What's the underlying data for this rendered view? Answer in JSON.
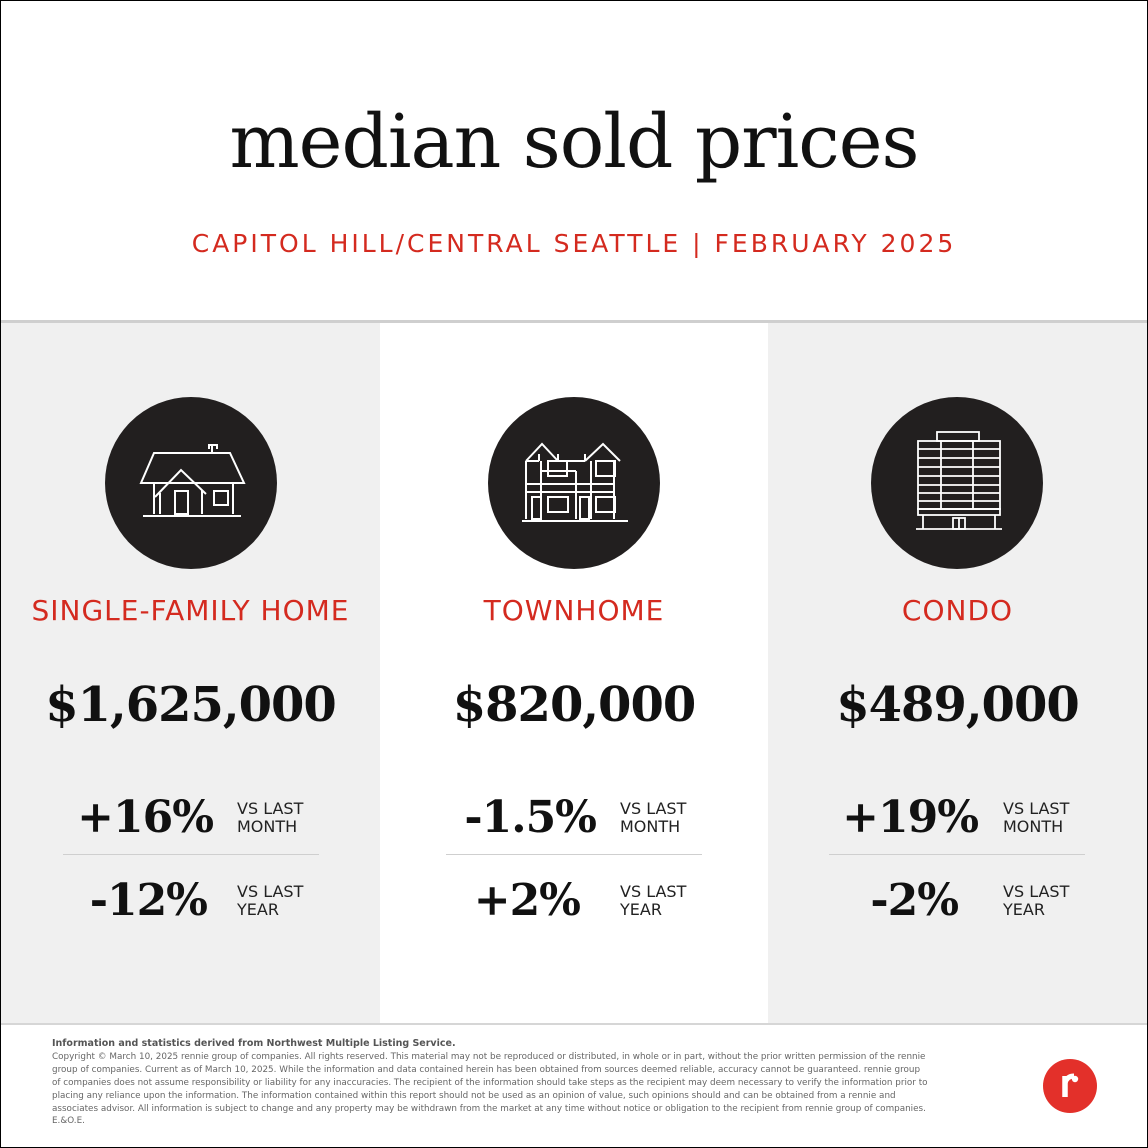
{
  "header": {
    "title": "median sold prices",
    "subtitle": "CAPITOL HILL/CENTRAL SEATTLE | FEBRUARY 2025"
  },
  "categories": [
    {
      "icon": "single-family-house-icon",
      "label": "SINGLE-FAMILY HOME",
      "price": "$1,625,000",
      "month_change": "+16%",
      "month_label_1": "VS LAST",
      "month_label_2": "MONTH",
      "year_change": "-12%",
      "year_label_1": "VS LAST",
      "year_label_2": "YEAR"
    },
    {
      "icon": "townhome-icon",
      "label": "TOWNHOME",
      "price": "$820,000",
      "month_change": "-1.5%",
      "month_label_1": "VS LAST",
      "month_label_2": "MONTH",
      "year_change": "+2%",
      "year_label_1": "VS LAST",
      "year_label_2": "YEAR"
    },
    {
      "icon": "condo-building-icon",
      "label": "CONDO",
      "price": "$489,000",
      "month_change": "+19%",
      "month_label_1": "VS LAST",
      "month_label_2": "MONTH",
      "year_change": "-2%",
      "year_label_1": "VS LAST",
      "year_label_2": "YEAR"
    }
  ],
  "footer": {
    "source": "Information and statistics derived from Northwest Multiple Listing Service.",
    "line1": "Copyright © March 10, 2025 rennie group of companies. All rights reserved. This material may not be reproduced or distributed, in whole or in part, without the prior written permission of the rennie",
    "line2": "group of companies. Current as of March 10, 2025. While the information and data contained herein has been obtained from sources deemed reliable, accuracy cannot be guaranteed. rennie group",
    "line3": "of companies does not assume responsibility or liability for any inaccuracies. The recipient of the information should take steps as the recipient may deem necessary to verify the information prior to",
    "line4": "placing any reliance upon the information. The information contained within this report should not be used as an opinion of value, such opinions should and can be obtained from a rennie and",
    "line5": "associates advisor. All information is subject to change and any property may be withdrawn from the market at any time without notice or obligation to the recipient from rennie group of companies.",
    "line6": "E.&O.E."
  },
  "logo": {
    "icon": "rennie-logo-icon",
    "color": "#e3302a"
  },
  "colors": {
    "accent": "#d42a1f",
    "icon_bg": "#221f1f",
    "panel_gray": "#f0f0f0"
  }
}
